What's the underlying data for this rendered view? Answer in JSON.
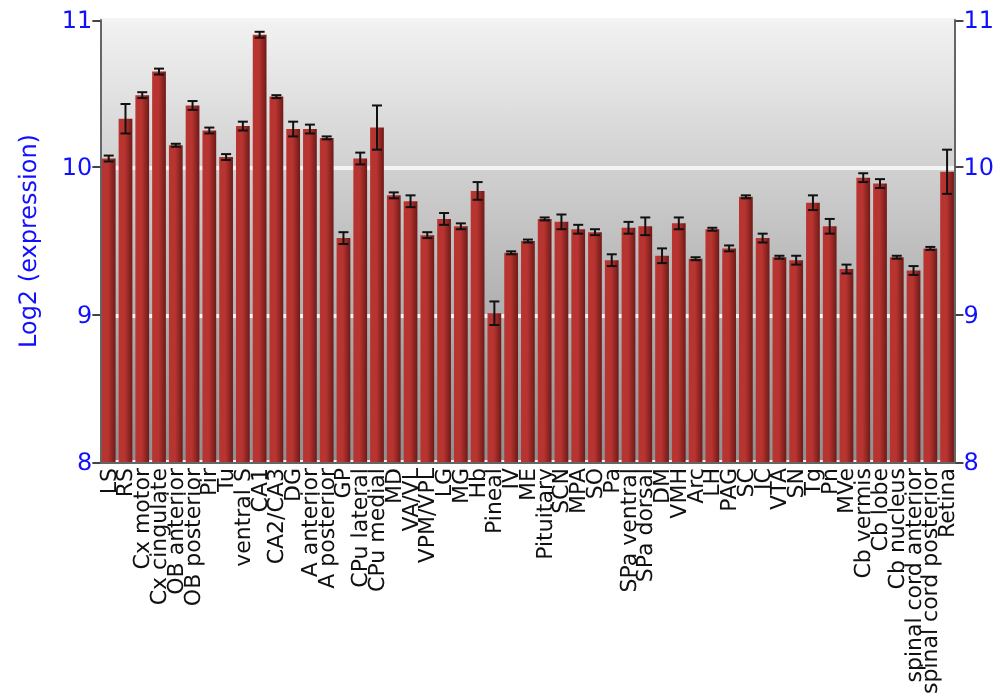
{
  "chart_data": {
    "type": "bar",
    "ylabel": "Log2 (expression)",
    "categories": [
      "LS",
      "RS",
      "Cx motor",
      "Cx cingulate",
      "OB anterior",
      "OB posterior",
      "Pir",
      "Tu",
      "ventral S",
      "CA1",
      "CA2/CA3",
      "DG",
      "A anterior",
      "A posterior",
      "GP",
      "CPu lateral",
      "CPu medial",
      "MD",
      "VA/VL",
      "VPM/VPL",
      "LG",
      "MG",
      "Hb",
      "Pineal",
      "IV",
      "ME",
      "Pituitary",
      "SCN",
      "MPA",
      "SO",
      "Pa",
      "SPa ventral",
      "SPa dorsal",
      "DM",
      "VMH",
      "Arc",
      "LH",
      "PAG",
      "SC",
      "IC",
      "VTA",
      "SN",
      "Tg",
      "Pn",
      "MVe",
      "Cb vermis",
      "Cb lobe",
      "Cb nucleus",
      "spinal cord anterior",
      "spinal cord posterior",
      "Retina"
    ],
    "series": [
      {
        "color": "#b83430",
        "values": [
          10.06,
          10.33,
          10.49,
          10.65,
          10.15,
          10.42,
          10.25,
          10.07,
          10.28,
          10.9,
          10.48,
          10.26,
          10.26,
          10.2,
          9.52,
          10.06,
          10.27,
          9.81,
          9.77,
          9.54,
          9.65,
          9.6,
          9.84,
          9.01,
          9.42,
          9.5,
          9.65,
          9.63,
          9.58,
          9.56,
          9.37,
          9.59,
          9.6,
          9.4,
          9.62,
          9.38,
          9.58,
          9.45,
          9.8,
          9.52,
          9.39,
          9.37,
          9.76,
          9.6,
          9.31,
          9.93,
          9.89,
          9.39,
          9.3,
          9.45,
          9.97
        ],
        "errors": [
          0.02,
          0.1,
          0.02,
          0.02,
          0.01,
          0.03,
          0.02,
          0.02,
          0.03,
          0.02,
          0.01,
          0.05,
          0.03,
          0.01,
          0.04,
          0.04,
          0.15,
          0.02,
          0.04,
          0.02,
          0.04,
          0.02,
          0.06,
          0.08,
          0.01,
          0.01,
          0.01,
          0.05,
          0.03,
          0.02,
          0.04,
          0.04,
          0.06,
          0.05,
          0.04,
          0.01,
          0.01,
          0.02,
          0.01,
          0.03,
          0.01,
          0.03,
          0.05,
          0.05,
          0.03,
          0.03,
          0.03,
          0.01,
          0.03,
          0.01,
          0.15
        ]
      }
    ],
    "ylim": [
      8,
      11
    ],
    "yticks": [
      8,
      9,
      10,
      11
    ],
    "y2lim": [
      8,
      11
    ],
    "y2ticks": [
      8,
      9,
      10,
      11
    ],
    "grid": "y"
  }
}
